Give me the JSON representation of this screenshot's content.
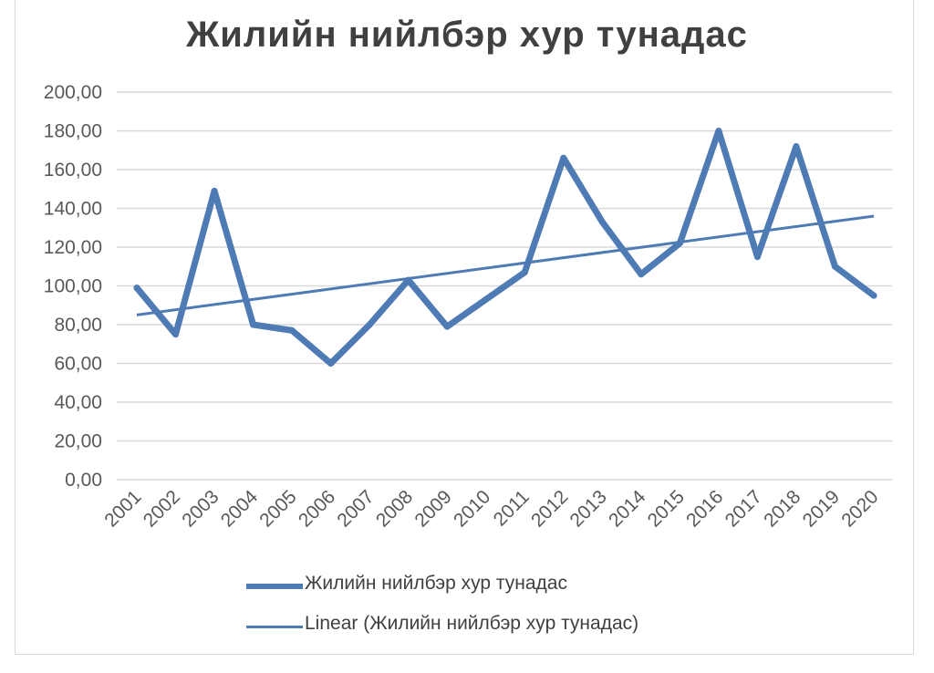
{
  "chart_data": {
    "type": "line",
    "title": "Жилийн нийлбэр хур тунадас",
    "categories": [
      "2001",
      "2002",
      "2003",
      "2004",
      "2005",
      "2006",
      "2007",
      "2008",
      "2009",
      "2010",
      "2011",
      "2012",
      "2013",
      "2014",
      "2015",
      "2016",
      "2017",
      "2018",
      "2019",
      "2020"
    ],
    "series": [
      {
        "name": "Жилийн нийлбэр хур тунадас",
        "values": [
          99,
          75,
          149,
          80,
          77,
          60,
          80,
          103,
          79,
          93,
          107,
          166,
          133,
          106,
          122,
          180,
          115,
          172,
          110,
          95
        ],
        "color": "#4f7bb5"
      }
    ],
    "trendline": {
      "name": "Linear (Жилийн нийлбэр хур тунадас)",
      "type": "linear",
      "start": 85,
      "end": 136,
      "color": "#4f7bb5"
    },
    "ylim": [
      0,
      200
    ],
    "y_ticks": [
      "0,00",
      "20,00",
      "40,00",
      "60,00",
      "80,00",
      "100,00",
      "120,00",
      "140,00",
      "160,00",
      "180,00",
      "200,00"
    ],
    "xlabel": "",
    "ylabel": "",
    "grid": true,
    "legend_position": "bottom"
  }
}
